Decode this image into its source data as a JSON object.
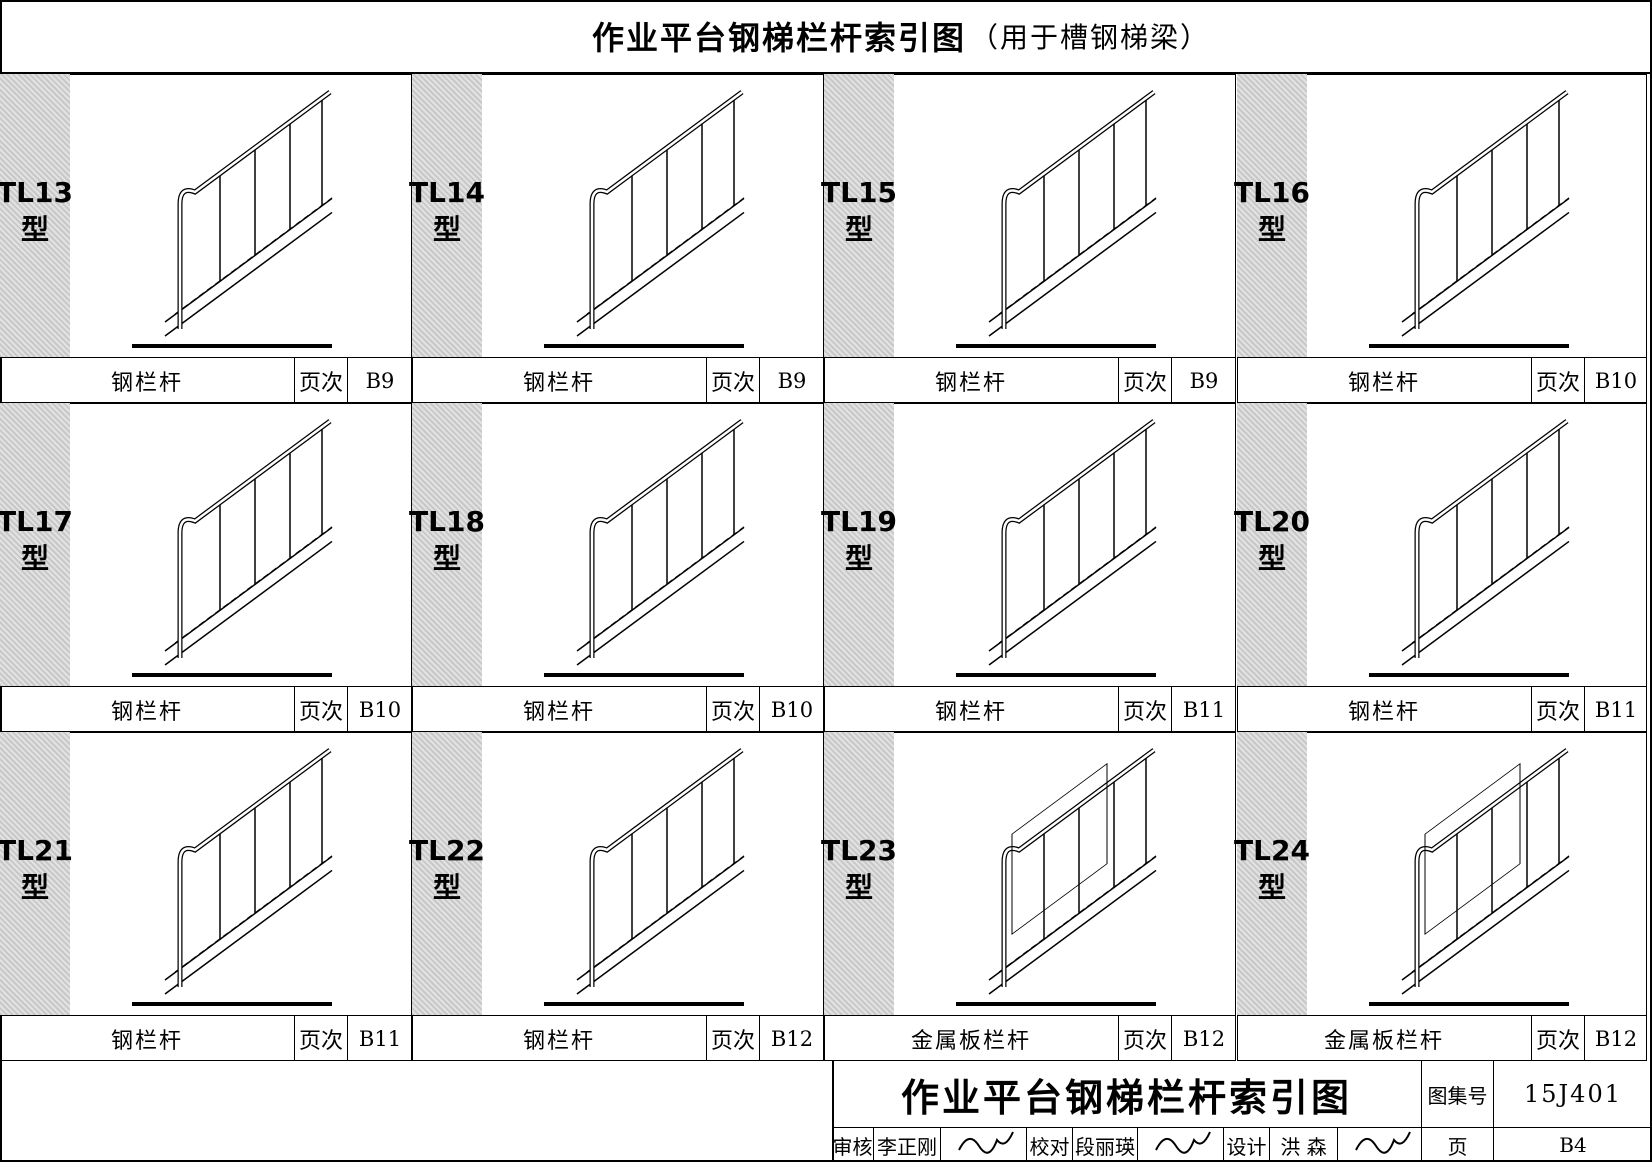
{
  "header": {
    "title": "作业平台钢梯栏杆索引图",
    "subtitle": "（用于槽钢梯梁）"
  },
  "cells": [
    {
      "code": "TL13",
      "suffix": "型",
      "name": "钢栏杆",
      "page_label": "页次",
      "page": "B9"
    },
    {
      "code": "TL14",
      "suffix": "型",
      "name": "钢栏杆",
      "page_label": "页次",
      "page": "B9"
    },
    {
      "code": "TL15",
      "suffix": "型",
      "name": "钢栏杆",
      "page_label": "页次",
      "page": "B9"
    },
    {
      "code": "TL16",
      "suffix": "型",
      "name": "钢栏杆",
      "page_label": "页次",
      "page": "B10"
    },
    {
      "code": "TL17",
      "suffix": "型",
      "name": "钢栏杆",
      "page_label": "页次",
      "page": "B10"
    },
    {
      "code": "TL18",
      "suffix": "型",
      "name": "钢栏杆",
      "page_label": "页次",
      "page": "B10"
    },
    {
      "code": "TL19",
      "suffix": "型",
      "name": "钢栏杆",
      "page_label": "页次",
      "page": "B11"
    },
    {
      "code": "TL20",
      "suffix": "型",
      "name": "钢栏杆",
      "page_label": "页次",
      "page": "B11"
    },
    {
      "code": "TL21",
      "suffix": "型",
      "name": "钢栏杆",
      "page_label": "页次",
      "page": "B11"
    },
    {
      "code": "TL22",
      "suffix": "型",
      "name": "钢栏杆",
      "page_label": "页次",
      "page": "B12"
    },
    {
      "code": "TL23",
      "suffix": "型",
      "name": "金属板栏杆",
      "page_label": "页次",
      "page": "B12"
    },
    {
      "code": "TL24",
      "suffix": "型",
      "name": "金属板栏杆",
      "page_label": "页次",
      "page": "B12"
    }
  ],
  "title_block": {
    "title": "作业平台钢梯栏杆索引图",
    "atlas_label": "图集号",
    "atlas_no": "15J401",
    "review_label": "审核",
    "reviewer": "李正刚",
    "check_label": "校对",
    "checker": "段丽瑛",
    "design_label": "设计",
    "designer": "洪 森",
    "page_label": "页",
    "page": "B4"
  }
}
